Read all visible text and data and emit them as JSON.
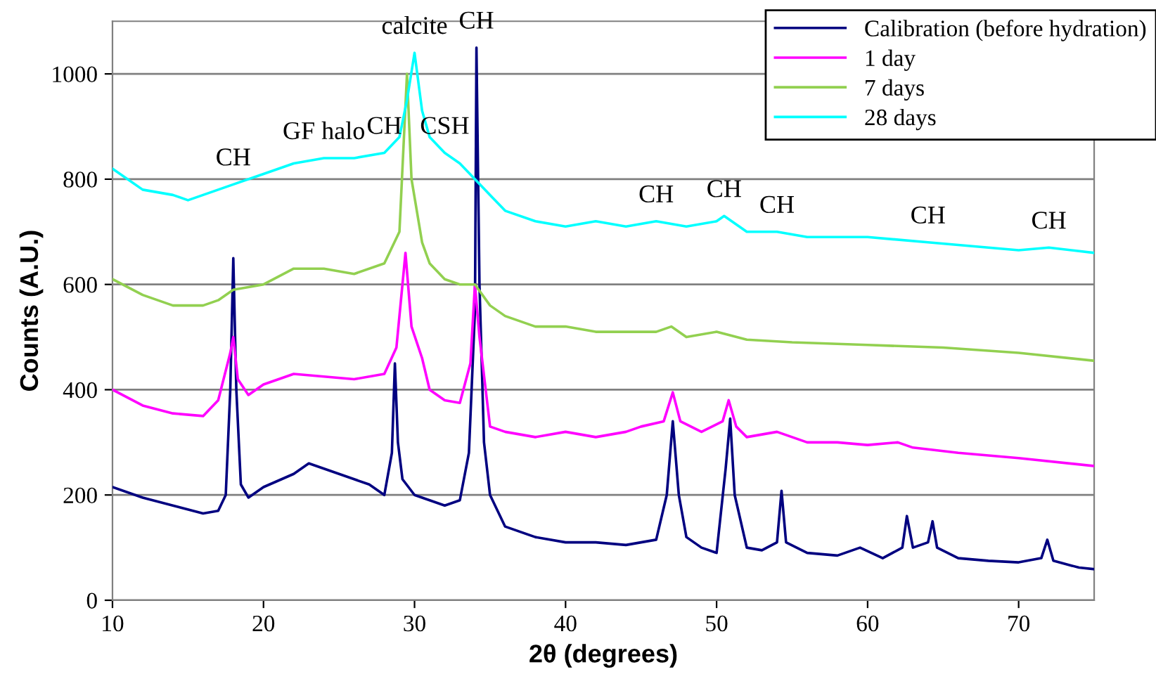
{
  "chart_data": {
    "type": "line",
    "xlabel": "2θ (degrees)",
    "ylabel": "Counts (A.U.)",
    "xlim": [
      10,
      75
    ],
    "xticks": [
      10,
      20,
      30,
      40,
      50,
      60,
      70
    ],
    "ylim": [
      0,
      1100
    ],
    "yticks": [
      0,
      200,
      400,
      600,
      800,
      1000
    ],
    "grid": "y",
    "legend": "top right",
    "marker": "none",
    "line_style": "solid",
    "series": [
      {
        "name": "Calibration (before hydration)",
        "color": "#000080",
        "x": [
          10,
          12,
          14,
          16,
          17,
          17.5,
          17.8,
          18,
          18.2,
          18.5,
          19,
          20,
          22,
          23,
          24,
          26,
          27,
          28,
          28.5,
          28.7,
          28.9,
          29.2,
          30,
          31,
          32,
          33,
          33.6,
          34,
          34.1,
          34.3,
          34.6,
          35,
          36,
          38,
          40,
          42,
          44,
          45,
          46,
          46.7,
          47.1,
          47.5,
          48,
          49,
          50,
          50.6,
          50.9,
          51.2,
          52,
          53,
          54,
          54.3,
          54.6,
          56,
          58,
          59.5,
          61,
          62.3,
          62.6,
          63,
          64,
          64.3,
          64.6,
          66,
          68,
          70,
          71.5,
          71.9,
          72.3,
          74,
          75
        ],
        "values": [
          215,
          195,
          180,
          165,
          170,
          200,
          400,
          650,
          400,
          220,
          195,
          215,
          240,
          260,
          250,
          230,
          220,
          200,
          280,
          450,
          300,
          230,
          200,
          190,
          180,
          190,
          280,
          550,
          1050,
          600,
          300,
          200,
          140,
          120,
          110,
          110,
          105,
          110,
          115,
          200,
          340,
          200,
          120,
          100,
          90,
          250,
          345,
          200,
          100,
          95,
          110,
          208,
          110,
          90,
          85,
          100,
          80,
          100,
          160,
          100,
          110,
          150,
          100,
          80,
          75,
          72,
          80,
          115,
          75,
          62,
          59
        ]
      },
      {
        "name": "1 day",
        "color": "#ff00ff",
        "x": [
          10,
          12,
          14,
          16,
          17,
          17.8,
          18,
          18.3,
          19,
          20,
          22,
          24,
          26,
          28,
          28.8,
          29.4,
          29.8,
          30.5,
          31,
          32,
          33,
          33.7,
          34,
          34.3,
          35,
          36,
          38,
          40,
          42,
          44,
          45,
          46.5,
          47.1,
          47.6,
          49,
          50.4,
          50.8,
          51.3,
          52,
          54,
          56,
          58,
          60,
          62,
          63,
          66,
          70,
          75
        ],
        "values": [
          400,
          370,
          355,
          350,
          380,
          470,
          500,
          420,
          390,
          410,
          430,
          425,
          420,
          430,
          480,
          660,
          520,
          460,
          400,
          380,
          375,
          450,
          600,
          500,
          330,
          320,
          310,
          320,
          310,
          320,
          330,
          340,
          395,
          340,
          320,
          340,
          380,
          330,
          310,
          320,
          300,
          300,
          295,
          300,
          290,
          280,
          270,
          255
        ]
      },
      {
        "name": "7 days",
        "color": "#92d050",
        "x": [
          10,
          12,
          14,
          16,
          17,
          18,
          20,
          22,
          24,
          26,
          28,
          29,
          29.5,
          29.8,
          30.5,
          31,
          32,
          33,
          34,
          35,
          36,
          38,
          40,
          42,
          44,
          46,
          47,
          48,
          50,
          52,
          55,
          60,
          65,
          70,
          75
        ],
        "values": [
          610,
          580,
          560,
          560,
          570,
          590,
          600,
          630,
          630,
          620,
          640,
          700,
          1000,
          800,
          680,
          640,
          610,
          600,
          600,
          560,
          540,
          520,
          520,
          510,
          510,
          510,
          520,
          500,
          510,
          495,
          490,
          485,
          480,
          470,
          455
        ]
      },
      {
        "name": "28 days",
        "color": "#00ffff",
        "x": [
          10,
          12,
          14,
          15,
          16,
          18,
          20,
          22,
          24,
          26,
          28,
          29,
          29.5,
          30,
          30.5,
          31,
          32,
          33,
          34,
          35,
          36,
          38,
          40,
          42,
          44,
          46,
          48,
          50,
          50.5,
          52,
          54,
          56,
          60,
          64,
          68,
          70,
          72,
          75
        ],
        "values": [
          820,
          780,
          770,
          760,
          770,
          790,
          810,
          830,
          840,
          840,
          850,
          880,
          950,
          1040,
          930,
          880,
          850,
          830,
          800,
          770,
          740,
          720,
          710,
          720,
          710,
          720,
          710,
          720,
          730,
          700,
          700,
          690,
          690,
          680,
          670,
          665,
          670,
          660
        ]
      }
    ],
    "annotations": [
      {
        "text": "CH",
        "x": 18,
        "y": 790
      },
      {
        "text": "GF halo",
        "x": 24,
        "y": 840
      },
      {
        "text": "CH",
        "x": 28,
        "y": 850
      },
      {
        "text": "calcite",
        "x": 30,
        "y": 1040
      },
      {
        "text": "CH",
        "x": 34.1,
        "y": 1050
      },
      {
        "text": "CSH",
        "x": 32,
        "y": 850
      },
      {
        "text": "CH",
        "x": 46,
        "y": 720
      },
      {
        "text": "CH",
        "x": 50.5,
        "y": 730
      },
      {
        "text": "CH",
        "x": 54,
        "y": 700
      },
      {
        "text": "CH",
        "x": 64,
        "y": 680
      },
      {
        "text": "CH",
        "x": 72,
        "y": 670
      }
    ]
  }
}
